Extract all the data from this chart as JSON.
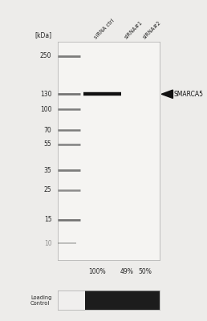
{
  "background_color": "#edecea",
  "blot_bg": "#f5f4f2",
  "kda_labels": [
    250,
    130,
    100,
    70,
    55,
    35,
    25,
    15,
    10
  ],
  "kda_label": "[kDa]",
  "column_labels": [
    "siRNA ctrl",
    "siRNA#1",
    "siRNA#2"
  ],
  "percentage_labels": [
    "100%",
    "49%",
    "50%"
  ],
  "smarca5_label": "SMARCA5",
  "marker_band_color": "#555555",
  "main_band_color": "#111111",
  "loading_control_label": "Loading\nControl",
  "lc_dark_color": "#1c1c1c",
  "lc_light_color": "#f0efee"
}
